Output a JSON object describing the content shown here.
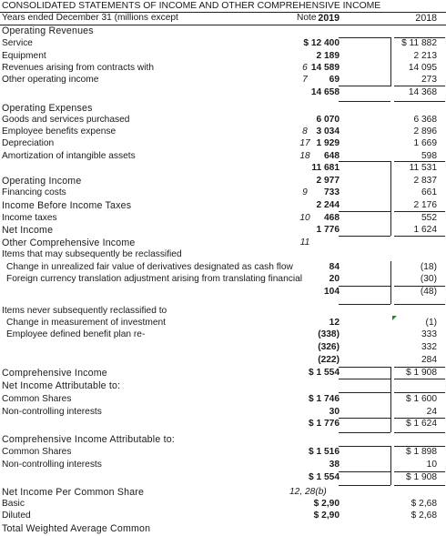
{
  "title": "CONSOLIDATED STATEMENTS OF INCOME AND OTHER COMPREHENSIVE INCOME",
  "header": {
    "label": "Years ended December 31 (millions except",
    "note": "Note",
    "y2019": "2019",
    "y2018": "2018"
  },
  "rows": [
    {
      "label": "Operating Revenues",
      "note": "",
      "v2019": "",
      "v2018": "",
      "style": "sec"
    },
    {
      "label": "Service",
      "note": "",
      "v2019": "$ 12 400",
      "v2018": "$ 11 882",
      "style": ""
    },
    {
      "label": "Equipment",
      "note": "",
      "v2019": "2 189",
      "v2018": "2 213",
      "style": ""
    },
    {
      "label": "Revenues arising from contracts with",
      "note": "6",
      "v2019": "14 589",
      "v2018": "14 095",
      "style": ""
    },
    {
      "label": "Other operating income",
      "note": "7",
      "v2019": "69",
      "v2018": "273",
      "style": ""
    },
    {
      "label": "",
      "note": "",
      "v2019": "14 658",
      "v2018": "14 368",
      "style": ""
    },
    {
      "label": "Operating Expenses",
      "note": "",
      "v2019": "",
      "v2018": "",
      "style": "sec"
    },
    {
      "label": "Goods and services purchased",
      "note": "",
      "v2019": "6 070",
      "v2018": "6 368",
      "style": ""
    },
    {
      "label": "Employee benefits expense",
      "note": "8",
      "v2019": "3 034",
      "v2018": "2 896",
      "style": ""
    },
    {
      "label": "Depreciation",
      "note": "17",
      "v2019": "1 929",
      "v2018": "1 669",
      "style": ""
    },
    {
      "label": "Amortization of intangible assets",
      "note": "18",
      "v2019": "648",
      "v2018": "598",
      "style": ""
    },
    {
      "label": "",
      "note": "",
      "v2019": "11 681",
      "v2018": "11 531",
      "style": ""
    },
    {
      "label": "Operating Income",
      "note": "",
      "v2019": "2 977",
      "v2018": "2 837",
      "style": "sec"
    },
    {
      "label": "Financing costs",
      "note": "9",
      "v2019": "733",
      "v2018": "661",
      "style": ""
    },
    {
      "label": "Income Before Income Taxes",
      "note": "",
      "v2019": "2 244",
      "v2018": "2 176",
      "style": "sec"
    },
    {
      "label": "Income taxes",
      "note": "10",
      "v2019": "468",
      "v2018": "552",
      "style": ""
    },
    {
      "label": "Net Income",
      "note": "",
      "v2019": "1 776",
      "v2018": "1 624",
      "style": "sec"
    },
    {
      "label": "Other Comprehensive Income",
      "note": "11",
      "v2019": "",
      "v2018": "",
      "style": "sec"
    },
    {
      "label": "Items that may subsequently be reclassified",
      "note": "",
      "v2019": "",
      "v2018": "",
      "style": ""
    },
    {
      "label": "Change in unrealized fair value of derivatives designated as cash flow",
      "note": "",
      "v2019": "84",
      "v2018": "(18)",
      "style": "ind"
    },
    {
      "label": "Foreign currency translation adjustment arising from translating financial",
      "note": "",
      "v2019": "20",
      "v2018": "(30)",
      "style": "ind"
    },
    {
      "label": "",
      "note": "",
      "v2019": "104",
      "v2018": "(48)",
      "style": ""
    },
    {
      "label": "Items never subsequently reclassified to",
      "note": "",
      "v2019": "",
      "v2018": "",
      "style": ""
    },
    {
      "label": "Change in measurement of investment",
      "note": "",
      "v2019": "12",
      "v2018": "(1)",
      "style": "ind"
    },
    {
      "label": "Employee defined benefit plan re-",
      "note": "",
      "v2019": "(338)",
      "v2018": "333",
      "style": "ind"
    },
    {
      "label": "",
      "note": "",
      "v2019": "(326)",
      "v2018": "332",
      "style": ""
    },
    {
      "label": "",
      "note": "",
      "v2019": "(222)",
      "v2018": "284",
      "style": ""
    },
    {
      "label": "Comprehensive Income",
      "note": "",
      "v2019": "$ 1 554",
      "v2018": "$ 1 908",
      "style": "sec"
    },
    {
      "label": "Net Income Attributable to:",
      "note": "",
      "v2019": "",
      "v2018": "",
      "style": "sec"
    },
    {
      "label": "Common Shares",
      "note": "",
      "v2019": "$ 1 746",
      "v2018": "$ 1 600",
      "style": ""
    },
    {
      "label": "Non-controlling interests",
      "note": "",
      "v2019": "30",
      "v2018": "24",
      "style": ""
    },
    {
      "label": "",
      "note": "",
      "v2019": "$ 1 776",
      "v2018": "$ 1 624",
      "style": ""
    },
    {
      "label": "Comprehensive Income Attributable to:",
      "note": "",
      "v2019": "",
      "v2018": "",
      "style": "sec"
    },
    {
      "label": "Common Shares",
      "note": "",
      "v2019": "$ 1 516",
      "v2018": "$ 1 898",
      "style": ""
    },
    {
      "label": "Non-controlling interests",
      "note": "",
      "v2019": "38",
      "v2018": "10",
      "style": ""
    },
    {
      "label": "",
      "note": "",
      "v2019": "$ 1 554",
      "v2018": "$ 1 908",
      "style": ""
    },
    {
      "label": "Net Income Per Common Share",
      "note": "12, 28(b)",
      "v2019": "",
      "v2018": "",
      "style": "sec"
    },
    {
      "label": "Basic",
      "note": "",
      "v2019": "$ 2,90",
      "v2018": "$ 2,68",
      "style": ""
    },
    {
      "label": "Diluted",
      "note": "",
      "v2019": "$ 2,90",
      "v2018": "$ 2,68",
      "style": ""
    },
    {
      "label": "Total Weighted Average Common",
      "note": "",
      "v2019": "",
      "v2018": "",
      "style": "sec"
    }
  ]
}
